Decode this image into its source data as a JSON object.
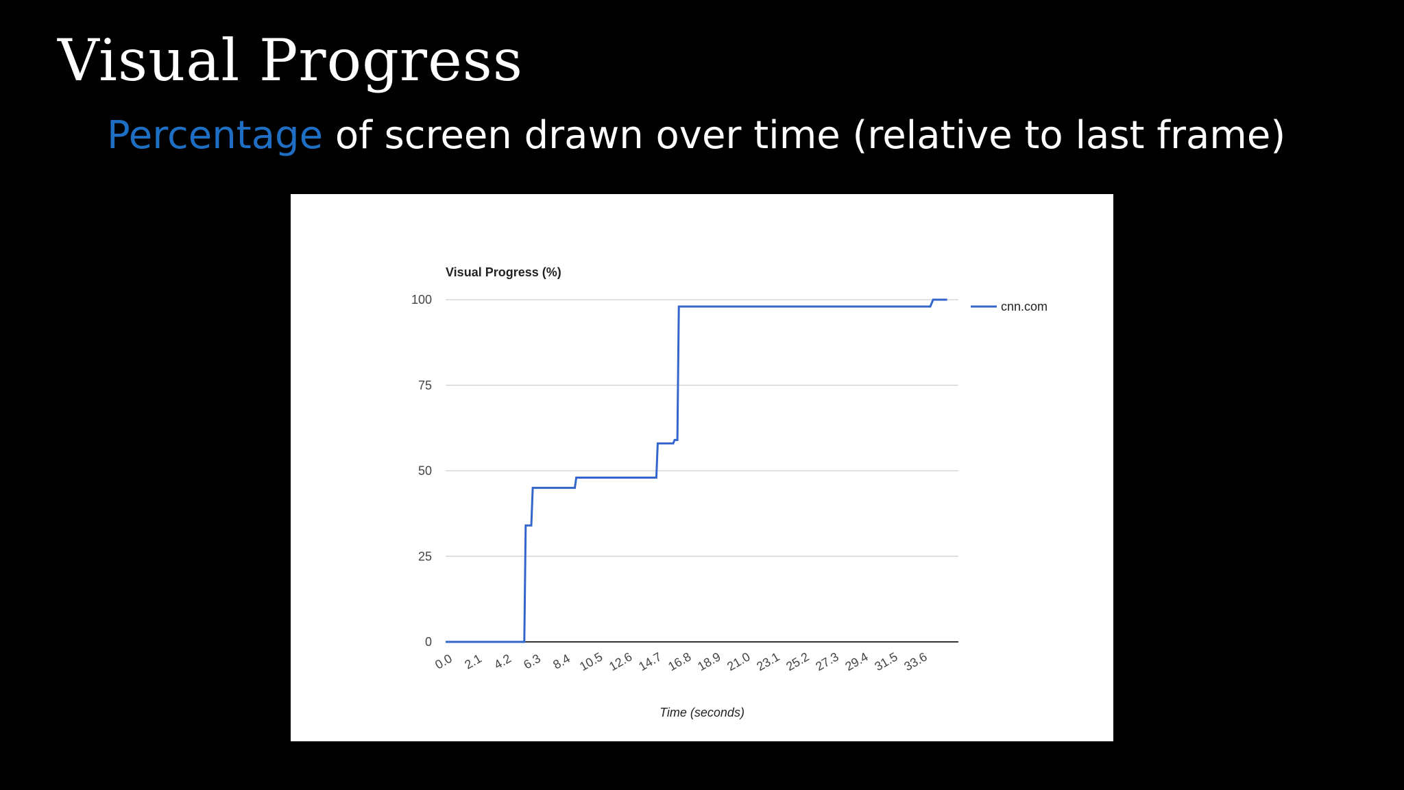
{
  "slide": {
    "title": "Visual Progress",
    "subtitle_highlight": "Percentage",
    "subtitle_rest": " of screen drawn over time (relative to last frame)",
    "highlight_color": "#1e6fc4",
    "background_color": "#000000"
  },
  "chart_data": {
    "type": "line",
    "title": "Visual Progress (%)",
    "xlabel": "Time (seconds)",
    "ylabel": "",
    "xlim": [
      0,
      36.5
    ],
    "ylim": [
      0,
      100
    ],
    "x_ticks": [
      "0.0",
      "2.1",
      "4.2",
      "6.3",
      "8.4",
      "10.5",
      "12.6",
      "14.7",
      "16.8",
      "18.9",
      "21.0",
      "23.1",
      "25.2",
      "27.3",
      "29.4",
      "31.5",
      "33.6"
    ],
    "y_ticks": [
      0,
      25,
      50,
      75,
      100
    ],
    "grid": true,
    "legend": "right",
    "series": [
      {
        "name": "cnn.com",
        "color": "#3366cc",
        "points": [
          [
            0.0,
            0
          ],
          [
            5.6,
            0
          ],
          [
            5.7,
            34
          ],
          [
            6.1,
            34
          ],
          [
            6.2,
            45
          ],
          [
            9.2,
            45
          ],
          [
            9.3,
            48
          ],
          [
            15.0,
            48
          ],
          [
            15.1,
            58
          ],
          [
            16.2,
            58
          ],
          [
            16.3,
            59
          ],
          [
            16.5,
            59
          ],
          [
            16.6,
            98
          ],
          [
            34.5,
            98
          ],
          [
            34.7,
            100
          ],
          [
            35.7,
            100
          ]
        ]
      }
    ]
  }
}
